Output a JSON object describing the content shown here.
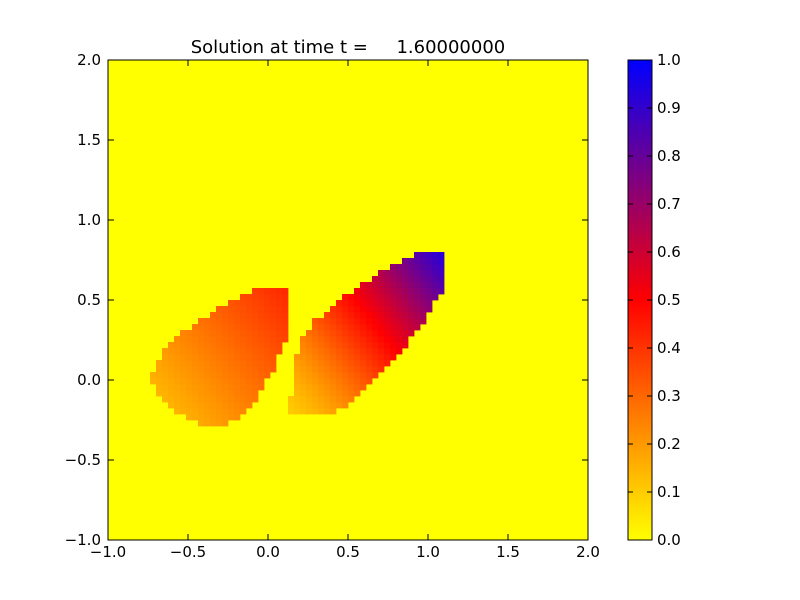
{
  "chart_data": {
    "type": "heatmap",
    "title": "Solution at time t =     1.60000000",
    "xlabel": "",
    "ylabel": "",
    "xlim": [
      -1.0,
      2.0
    ],
    "ylim": [
      -1.0,
      2.0
    ],
    "x_ticks": [
      "−1.0",
      "−0.5",
      "0.0",
      "0.5",
      "1.0",
      "1.5",
      "2.0"
    ],
    "y_ticks": [
      "−1.0",
      "−0.5",
      "0.0",
      "0.5",
      "1.0",
      "1.5",
      "2.0"
    ],
    "x_tick_values": [
      -1.0,
      -0.5,
      0.0,
      0.5,
      1.0,
      1.5,
      2.0
    ],
    "y_tick_values": [
      -1.0,
      -0.5,
      0.0,
      0.5,
      1.0,
      1.5,
      2.0
    ],
    "grid_resolution": 80,
    "colorbar": {
      "range": [
        0.0,
        1.0
      ],
      "ticks": [
        "0.0",
        "0.1",
        "0.2",
        "0.3",
        "0.4",
        "0.5",
        "0.6",
        "0.7",
        "0.8",
        "0.9",
        "1.0"
      ],
      "tick_values": [
        0.0,
        0.1,
        0.2,
        0.3,
        0.4,
        0.5,
        0.6,
        0.7,
        0.8,
        0.9,
        1.0
      ],
      "colormap": [
        {
          "value": 0.0,
          "color": "#ffff00"
        },
        {
          "value": 0.5,
          "color": "#ff0000"
        },
        {
          "value": 1.0,
          "color": "#0000ff"
        }
      ]
    },
    "regions": [
      {
        "name": "left-lobe",
        "description_values": {
          "min": 0.1,
          "max": 0.45
        },
        "outline": [
          [
            -0.73,
            0.0
          ],
          [
            -0.7,
            0.12
          ],
          [
            -0.6,
            0.24
          ],
          [
            -0.45,
            0.36
          ],
          [
            -0.3,
            0.46
          ],
          [
            -0.15,
            0.54
          ],
          [
            0.0,
            0.58
          ],
          [
            0.08,
            0.58
          ],
          [
            0.14,
            0.53
          ],
          [
            0.14,
            0.4
          ],
          [
            0.1,
            0.22
          ],
          [
            0.02,
            0.04
          ],
          [
            -0.08,
            -0.12
          ],
          [
            -0.2,
            -0.26
          ],
          [
            -0.35,
            -0.3
          ],
          [
            -0.5,
            -0.25
          ],
          [
            -0.65,
            -0.14
          ]
        ]
      },
      {
        "name": "right-lobe",
        "description_values": {
          "min": 0.1,
          "max": 0.95
        },
        "outline": [
          [
            0.14,
            -0.22
          ],
          [
            0.15,
            0.05
          ],
          [
            0.2,
            0.24
          ],
          [
            0.3,
            0.38
          ],
          [
            0.45,
            0.5
          ],
          [
            0.6,
            0.6
          ],
          [
            0.75,
            0.7
          ],
          [
            0.9,
            0.78
          ],
          [
            1.05,
            0.8
          ],
          [
            1.1,
            0.77
          ],
          [
            1.12,
            0.68
          ],
          [
            1.08,
            0.55
          ],
          [
            0.98,
            0.38
          ],
          [
            0.85,
            0.2
          ],
          [
            0.7,
            0.03
          ],
          [
            0.55,
            -0.12
          ],
          [
            0.4,
            -0.2
          ],
          [
            0.25,
            -0.22
          ]
        ]
      }
    ]
  }
}
